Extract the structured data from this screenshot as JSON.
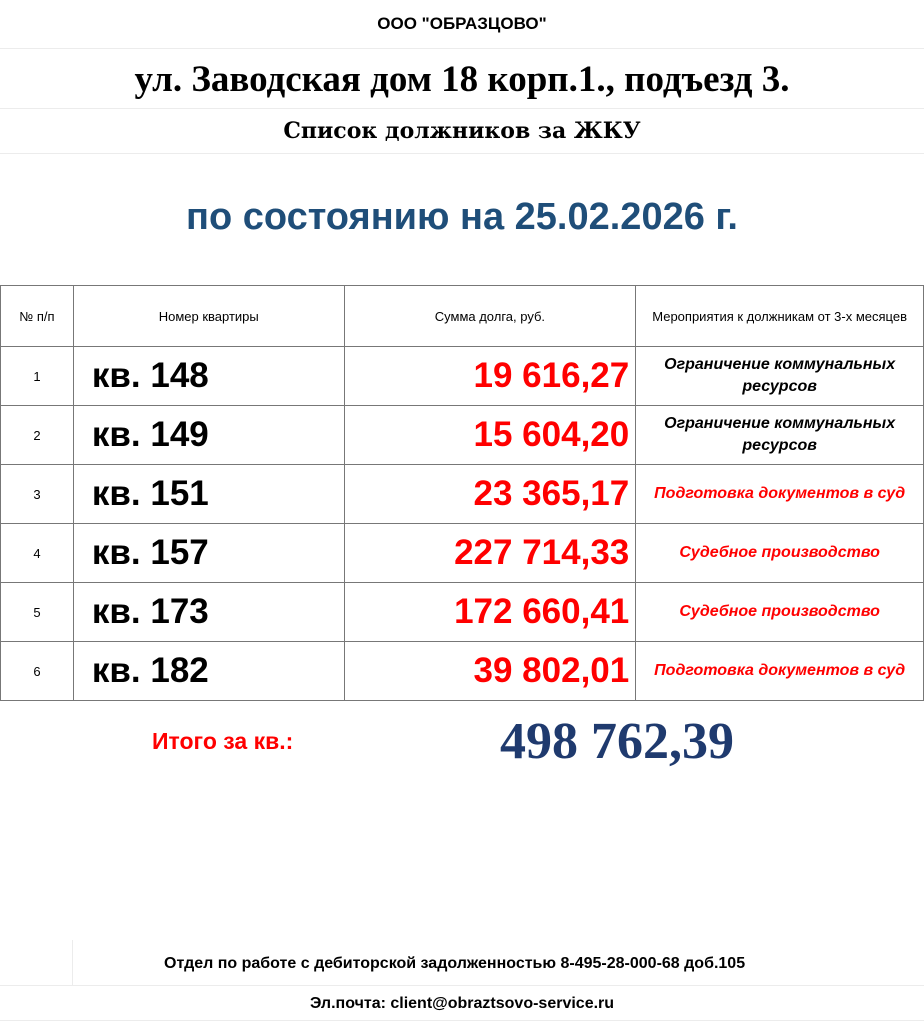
{
  "header": {
    "org": "ООО \"ОБРАЗЦОВО\"",
    "address": "ул. Заводская дом 18 корп.1., подъезд 3.",
    "subtitle": "Список должников за ЖКУ",
    "date_line": "по состоянию на 25.02.2026 г."
  },
  "table": {
    "columns": [
      "№ п/п",
      "Номер квартиры",
      "Сумма долга, руб.",
      "Мероприятия к должникам от 3-х месяцев"
    ],
    "rows": [
      {
        "n": "1",
        "apt": "кв. 148",
        "sum": "19 616,27",
        "action": "Ограничение  коммунальных ресурсов",
        "action_color": "#000000"
      },
      {
        "n": "2",
        "apt": "кв. 149",
        "sum": "15 604,20",
        "action": "Ограничение  коммунальных ресурсов",
        "action_color": "#000000"
      },
      {
        "n": "3",
        "apt": "кв. 151",
        "sum": "23 365,17",
        "action": "Подготовка  документов в суд",
        "action_color": "#ff0000"
      },
      {
        "n": "4",
        "apt": "кв. 157",
        "sum": "227 714,33",
        "action": "Судебное производство",
        "action_color": "#ff0000"
      },
      {
        "n": "5",
        "apt": "кв. 173",
        "sum": "172 660,41",
        "action": "Судебное производство",
        "action_color": "#ff0000"
      },
      {
        "n": "6",
        "apt": "кв. 182",
        "sum": "39 802,01",
        "action": "Подготовка  документов в суд",
        "action_color": "#ff0000"
      }
    ]
  },
  "total": {
    "label": "Итого за кв.:",
    "value": "498 762,39"
  },
  "footer": {
    "department": "Отдел по работе с дебиторской задолженностью 8-495-28-000-68 доб.105",
    "email": "Эл.почта: client@obraztsovo-service.ru"
  }
}
